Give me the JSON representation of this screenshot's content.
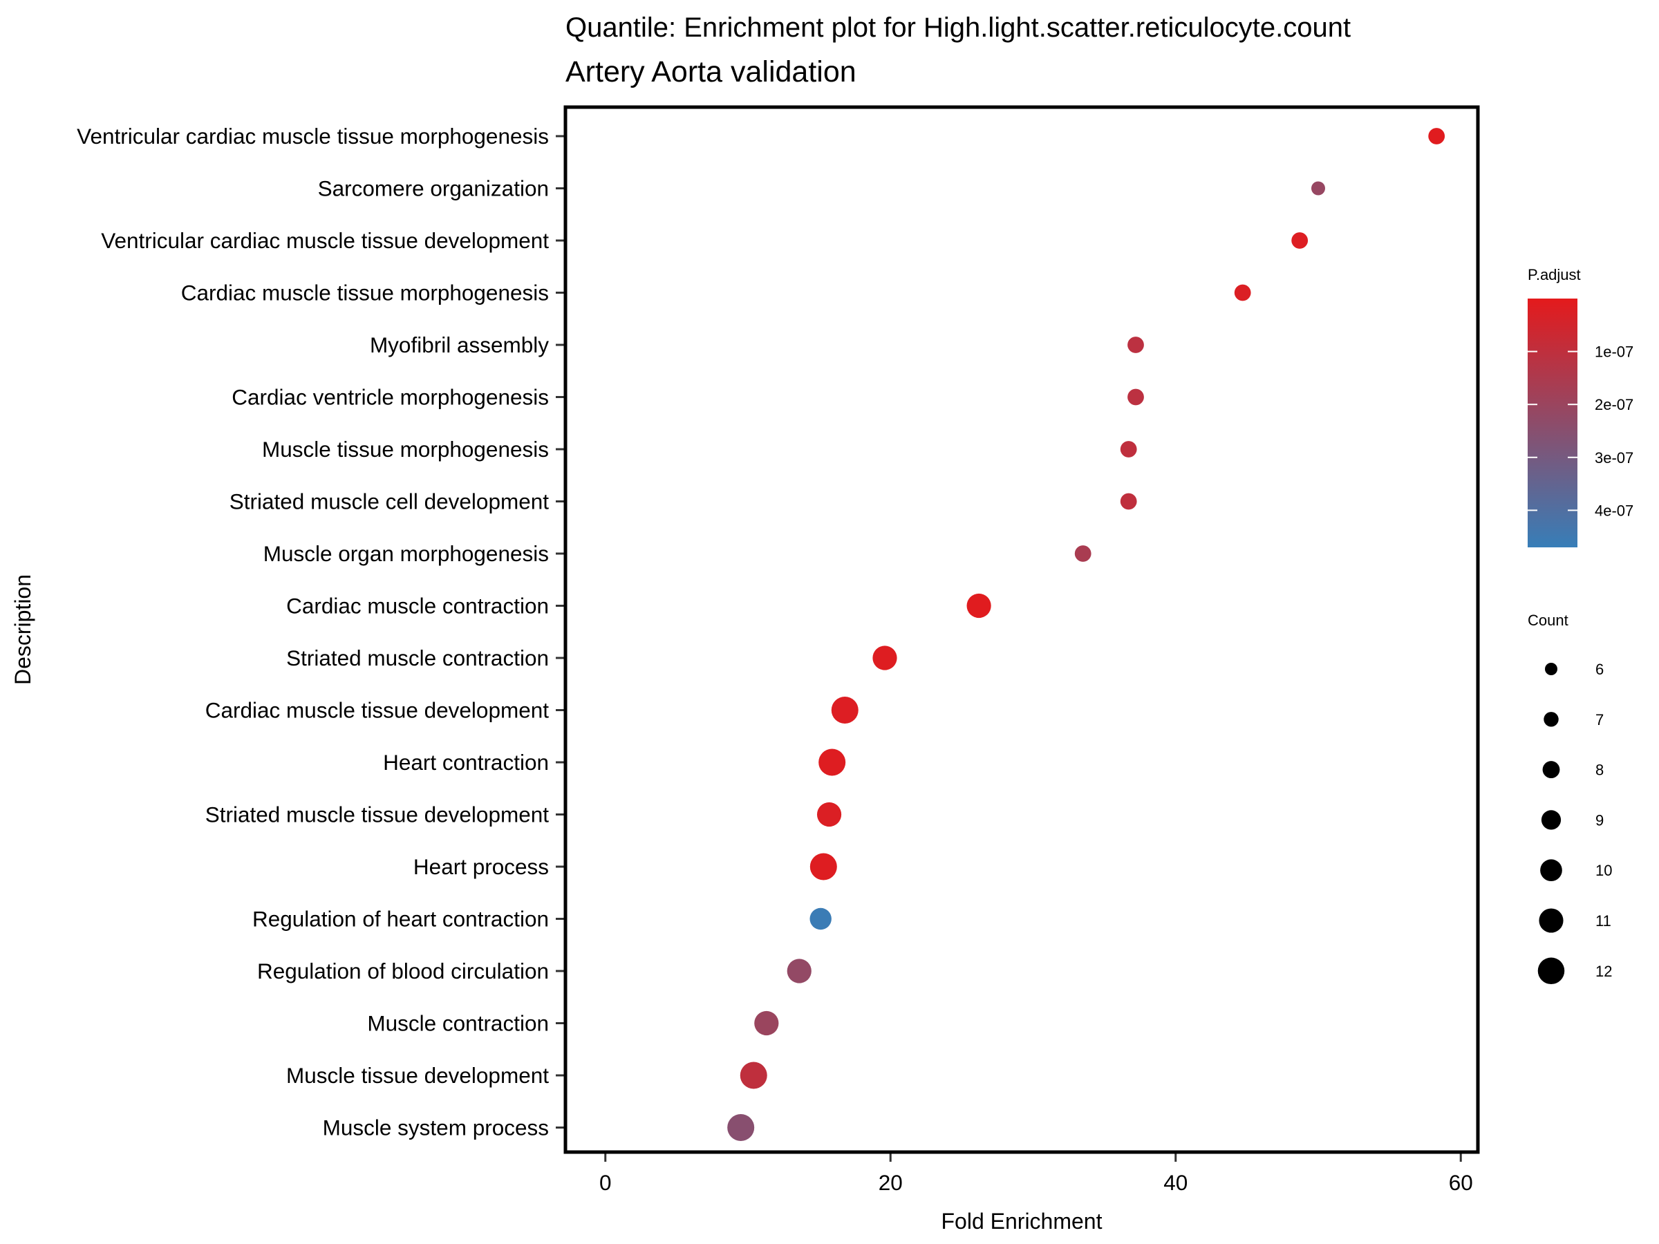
{
  "chart_data": {
    "type": "scatter",
    "title": "Quantile: Enrichment plot for High.light.scatter.reticulocyte.count",
    "subtitle": "Artery Aorta validation",
    "xlabel": "Fold Enrichment",
    "ylabel": "Description",
    "xlim": [
      -2.8,
      61.2
    ],
    "xticks": [
      0,
      20,
      40,
      60
    ],
    "categories": [
      "Ventricular cardiac muscle tissue morphogenesis",
      "Sarcomere organization",
      "Ventricular cardiac muscle tissue development",
      "Cardiac muscle tissue morphogenesis",
      "Myofibril assembly",
      "Cardiac ventricle morphogenesis",
      "Muscle tissue morphogenesis",
      "Striated muscle cell development",
      "Muscle organ morphogenesis",
      "Cardiac muscle contraction",
      "Striated muscle contraction",
      "Cardiac muscle tissue development",
      "Heart contraction",
      "Striated muscle tissue development",
      "Heart process",
      "Regulation of heart contraction",
      "Regulation of blood circulation",
      "Muscle contraction",
      "Muscle tissue development",
      "Muscle system process"
    ],
    "points": [
      {
        "description": "Ventricular cardiac muscle tissue morphogenesis",
        "fold_enrichment": 58.3,
        "count": 7,
        "p_adjust": 1e-08
      },
      {
        "description": "Sarcomere organization",
        "fold_enrichment": 50.0,
        "count": 6,
        "p_adjust": 2.1e-07
      },
      {
        "description": "Ventricular cardiac muscle tissue development",
        "fold_enrichment": 48.7,
        "count": 7,
        "p_adjust": 2e-08
      },
      {
        "description": "Cardiac muscle tissue morphogenesis",
        "fold_enrichment": 44.7,
        "count": 7,
        "p_adjust": 2.5e-08
      },
      {
        "description": "Myofibril assembly",
        "fold_enrichment": 37.2,
        "count": 7,
        "p_adjust": 1.1e-07
      },
      {
        "description": "Cardiac ventricle morphogenesis",
        "fold_enrichment": 37.2,
        "count": 7,
        "p_adjust": 1.1e-07
      },
      {
        "description": "Muscle tissue morphogenesis",
        "fold_enrichment": 36.7,
        "count": 7,
        "p_adjust": 1e-07
      },
      {
        "description": "Striated muscle cell development",
        "fold_enrichment": 36.7,
        "count": 7,
        "p_adjust": 1e-07
      },
      {
        "description": "Muscle organ morphogenesis",
        "fold_enrichment": 33.5,
        "count": 7,
        "p_adjust": 1.6e-07
      },
      {
        "description": "Cardiac muscle contraction",
        "fold_enrichment": 26.2,
        "count": 10,
        "p_adjust": 1e-08
      },
      {
        "description": "Striated muscle contraction",
        "fold_enrichment": 19.6,
        "count": 10,
        "p_adjust": 1.5e-08
      },
      {
        "description": "Cardiac muscle tissue development",
        "fold_enrichment": 16.8,
        "count": 11,
        "p_adjust": 2e-08
      },
      {
        "description": "Heart contraction",
        "fold_enrichment": 15.9,
        "count": 11,
        "p_adjust": 1.5e-08
      },
      {
        "description": "Striated muscle tissue development",
        "fold_enrichment": 15.7,
        "count": 10,
        "p_adjust": 2.5e-08
      },
      {
        "description": "Heart process",
        "fold_enrichment": 15.3,
        "count": 11,
        "p_adjust": 1.5e-08
      },
      {
        "description": "Regulation of heart contraction",
        "fold_enrichment": 15.1,
        "count": 9,
        "p_adjust": 4.6e-07
      },
      {
        "description": "Regulation of blood circulation",
        "fold_enrichment": 13.6,
        "count": 10,
        "p_adjust": 2.2e-07
      },
      {
        "description": "Muscle contraction",
        "fold_enrichment": 11.3,
        "count": 10,
        "p_adjust": 2e-07
      },
      {
        "description": "Muscle tissue development",
        "fold_enrichment": 10.4,
        "count": 11,
        "p_adjust": 1e-07
      },
      {
        "description": "Muscle system process",
        "fold_enrichment": 9.5,
        "count": 11,
        "p_adjust": 2.5e-07
      }
    ],
    "color_legend": {
      "title": "P.adjust",
      "range": [
        0.0,
        4.7e-07
      ],
      "ticks": [
        {
          "value": 1e-07,
          "label": "1e-07"
        },
        {
          "value": 2e-07,
          "label": "2e-07"
        },
        {
          "value": 3e-07,
          "label": "3e-07"
        },
        {
          "value": 4e-07,
          "label": "4e-07"
        }
      ],
      "low_color": "#E41A1C",
      "high_color": "#377EB8"
    },
    "size_legend": {
      "title": "Count",
      "values": [
        6,
        7,
        8,
        9,
        10,
        11,
        12
      ],
      "labels": [
        "6",
        "7",
        "8",
        "9",
        "10",
        "11",
        "12"
      ]
    },
    "grid": false,
    "legend_position": "right"
  }
}
